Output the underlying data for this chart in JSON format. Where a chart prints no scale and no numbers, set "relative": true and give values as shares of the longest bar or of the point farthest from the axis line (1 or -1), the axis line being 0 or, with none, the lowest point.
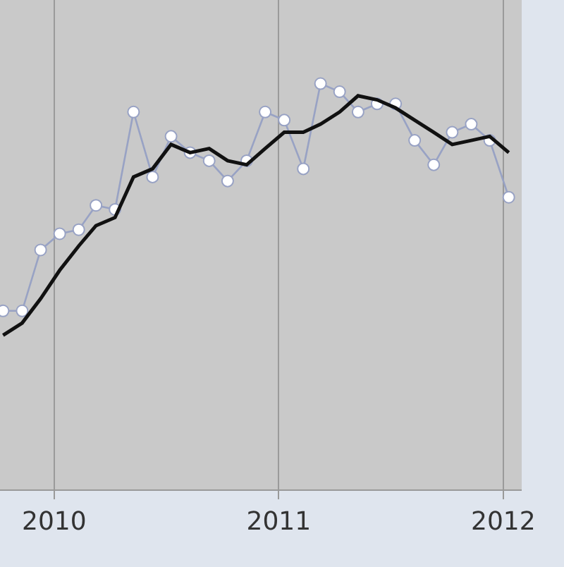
{
  "chart_data": {
    "type": "line",
    "relative": true,
    "x": [
      "2009-10-10",
      "2009-11-10",
      "2009-12-10",
      "2010-01-10",
      "2010-02-10",
      "2010-03-10",
      "2010-04-10",
      "2010-05-10",
      "2010-06-10",
      "2010-07-10",
      "2010-08-10",
      "2010-09-10",
      "2010-10-10",
      "2010-11-10",
      "2010-12-10",
      "2011-01-10",
      "2011-02-10",
      "2011-03-10",
      "2011-04-10",
      "2011-05-10",
      "2011-06-10",
      "2011-07-10",
      "2011-08-10",
      "2011-09-10",
      "2011-10-10",
      "2011-11-10",
      "2011-12-10",
      "2012-01-10"
    ],
    "series": [
      {
        "color": "#98a2c4",
        "marker": "circle",
        "line_style": "solid",
        "values": [
          0.44,
          0.44,
          0.59,
          0.63,
          0.64,
          0.7,
          0.69,
          0.93,
          0.77,
          0.87,
          0.83,
          0.81,
          0.76,
          0.81,
          0.93,
          0.91,
          0.79,
          1.0,
          0.98,
          0.93,
          0.95,
          0.95,
          0.86,
          0.8,
          0.88,
          0.9,
          0.86,
          0.72
        ]
      },
      {
        "color": "#111111",
        "marker": "none",
        "line_style": "solid",
        "values": [
          0.38,
          0.41,
          0.47,
          0.54,
          0.6,
          0.65,
          0.67,
          0.77,
          0.79,
          0.85,
          0.83,
          0.84,
          0.81,
          0.8,
          0.84,
          0.88,
          0.88,
          0.9,
          0.93,
          0.97,
          0.96,
          0.94,
          0.91,
          0.88,
          0.85,
          0.86,
          0.87,
          0.83
        ]
      }
    ],
    "xlim": [
      "2009-10-05",
      "2012-01-31"
    ],
    "xticks": [
      {
        "value": "2010-01-01",
        "label": "2010"
      },
      {
        "value": "2011-01-01",
        "label": "2011"
      },
      {
        "value": "2012-01-01",
        "label": "2012"
      }
    ],
    "grid": "x"
  }
}
